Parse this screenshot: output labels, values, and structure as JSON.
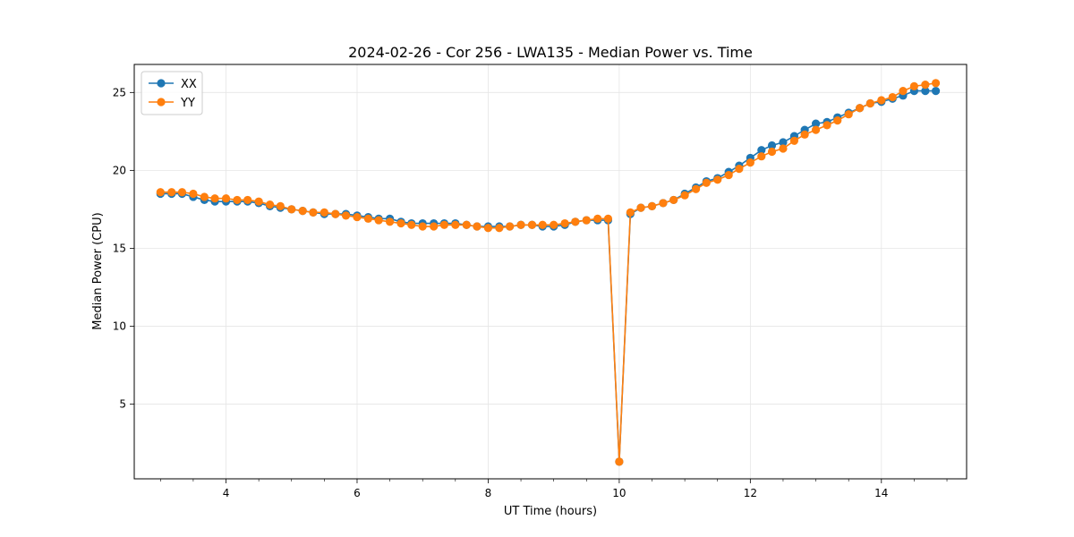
{
  "chart_data": {
    "type": "line",
    "title": "2024-02-26 - Cor 256 - LWA135 - Median Power vs. Time",
    "xlabel": "UT Time (hours)",
    "ylabel": "Median Power (CPU)",
    "xlim": [
      2.6,
      15.3
    ],
    "ylim": [
      0.2,
      26.8
    ],
    "xticks": [
      4,
      6,
      8,
      10,
      12,
      14
    ],
    "yticks": [
      5,
      10,
      15,
      20,
      25
    ],
    "x_minor_step": 0.5,
    "grid": true,
    "legend_position": "upper-left",
    "x": [
      3.0,
      3.17,
      3.33,
      3.5,
      3.67,
      3.83,
      4.0,
      4.17,
      4.33,
      4.5,
      4.67,
      4.83,
      5.0,
      5.17,
      5.33,
      5.5,
      5.67,
      5.83,
      6.0,
      6.17,
      6.33,
      6.5,
      6.67,
      6.83,
      7.0,
      7.17,
      7.33,
      7.5,
      7.67,
      7.83,
      8.0,
      8.17,
      8.33,
      8.5,
      8.67,
      8.83,
      9.0,
      9.17,
      9.33,
      9.5,
      9.67,
      9.83,
      10.0,
      10.17,
      10.33,
      10.5,
      10.67,
      10.83,
      11.0,
      11.17,
      11.33,
      11.5,
      11.67,
      11.83,
      12.0,
      12.17,
      12.33,
      12.5,
      12.67,
      12.83,
      13.0,
      13.17,
      13.33,
      13.5,
      13.67,
      13.83,
      14.0,
      14.17,
      14.33,
      14.5,
      14.67,
      14.83
    ],
    "series": [
      {
        "name": "XX",
        "color": "#1f77b4",
        "values": [
          18.5,
          18.5,
          18.5,
          18.3,
          18.1,
          18.0,
          18.0,
          18.0,
          18.0,
          17.9,
          17.7,
          17.6,
          17.5,
          17.4,
          17.3,
          17.2,
          17.2,
          17.2,
          17.1,
          17.0,
          16.9,
          16.9,
          16.7,
          16.6,
          16.6,
          16.6,
          16.6,
          16.6,
          16.5,
          16.4,
          16.4,
          16.4,
          16.4,
          16.5,
          16.5,
          16.4,
          16.4,
          16.5,
          16.7,
          16.8,
          16.8,
          16.8,
          1.3,
          17.2,
          17.6,
          17.7,
          17.9,
          18.1,
          18.5,
          18.9,
          19.3,
          19.5,
          19.9,
          20.3,
          20.8,
          21.3,
          21.6,
          21.8,
          22.2,
          22.6,
          23.0,
          23.1,
          23.4,
          23.7,
          24.0,
          24.3,
          24.4,
          24.6,
          24.8,
          25.1,
          25.1,
          25.1
        ]
      },
      {
        "name": "YY",
        "color": "#ff7f0e",
        "values": [
          18.6,
          18.6,
          18.6,
          18.5,
          18.3,
          18.2,
          18.2,
          18.1,
          18.1,
          18.0,
          17.8,
          17.7,
          17.5,
          17.4,
          17.3,
          17.3,
          17.2,
          17.1,
          17.0,
          16.9,
          16.8,
          16.7,
          16.6,
          16.5,
          16.4,
          16.4,
          16.5,
          16.5,
          16.5,
          16.4,
          16.3,
          16.3,
          16.4,
          16.5,
          16.5,
          16.5,
          16.5,
          16.6,
          16.7,
          16.8,
          16.9,
          16.9,
          1.3,
          17.3,
          17.6,
          17.7,
          17.9,
          18.1,
          18.4,
          18.8,
          19.2,
          19.4,
          19.7,
          20.1,
          20.5,
          20.9,
          21.2,
          21.4,
          21.9,
          22.3,
          22.6,
          22.9,
          23.2,
          23.6,
          24.0,
          24.3,
          24.5,
          24.7,
          25.1,
          25.4,
          25.5,
          25.6
        ]
      }
    ]
  }
}
